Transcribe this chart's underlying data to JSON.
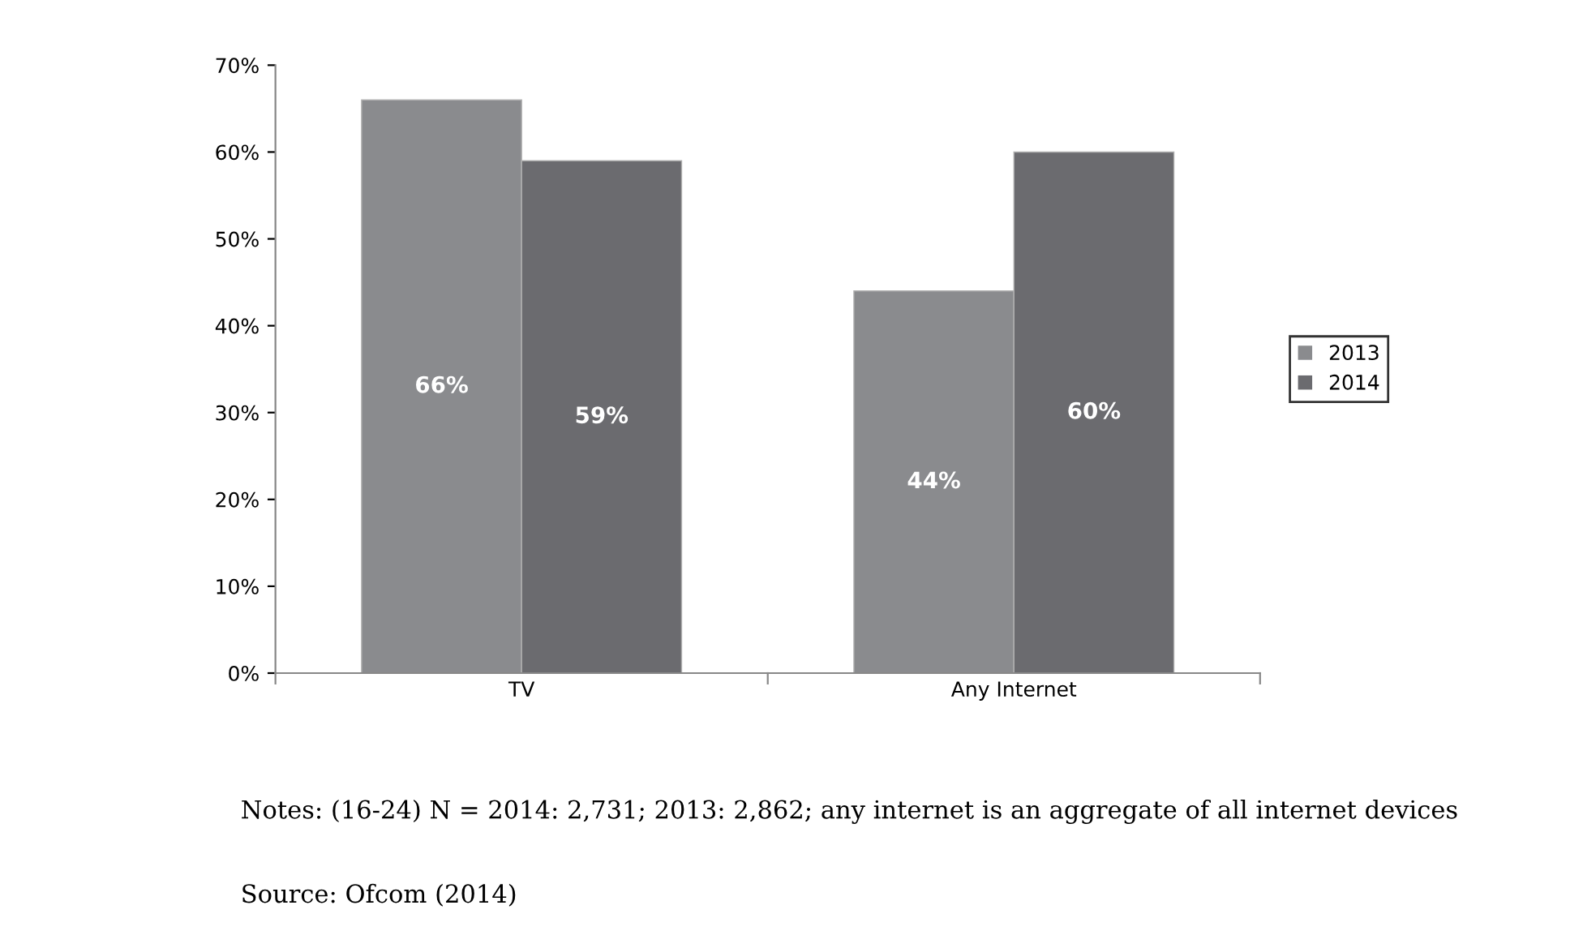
{
  "chart_data": {
    "type": "bar",
    "categories": [
      "TV",
      "Any Internet"
    ],
    "series": [
      {
        "name": "2013",
        "color": "#8a8b8e",
        "values": [
          66,
          44
        ],
        "value_labels": [
          "66%",
          "44%"
        ]
      },
      {
        "name": "2014",
        "color": "#6b6b6f",
        "values": [
          59,
          60
        ],
        "value_labels": [
          "59%",
          "60%"
        ]
      }
    ],
    "ylim": [
      0,
      70
    ],
    "yticks": [
      {
        "value": 0,
        "label": "0%"
      },
      {
        "value": 10,
        "label": "10%"
      },
      {
        "value": 20,
        "label": "20%"
      },
      {
        "value": 30,
        "label": "30%"
      },
      {
        "value": 40,
        "label": "40%"
      },
      {
        "value": 50,
        "label": "50%"
      },
      {
        "value": 60,
        "label": "60%"
      },
      {
        "value": 70,
        "label": "70%"
      }
    ],
    "grid": false,
    "legend": "right",
    "annotations": [
      "Notes: (16-24) N = 2014: 2,731; 2013: 2,862; any internet is an aggregate of all internet devices",
      "Source: Ofcom (2014)"
    ]
  }
}
